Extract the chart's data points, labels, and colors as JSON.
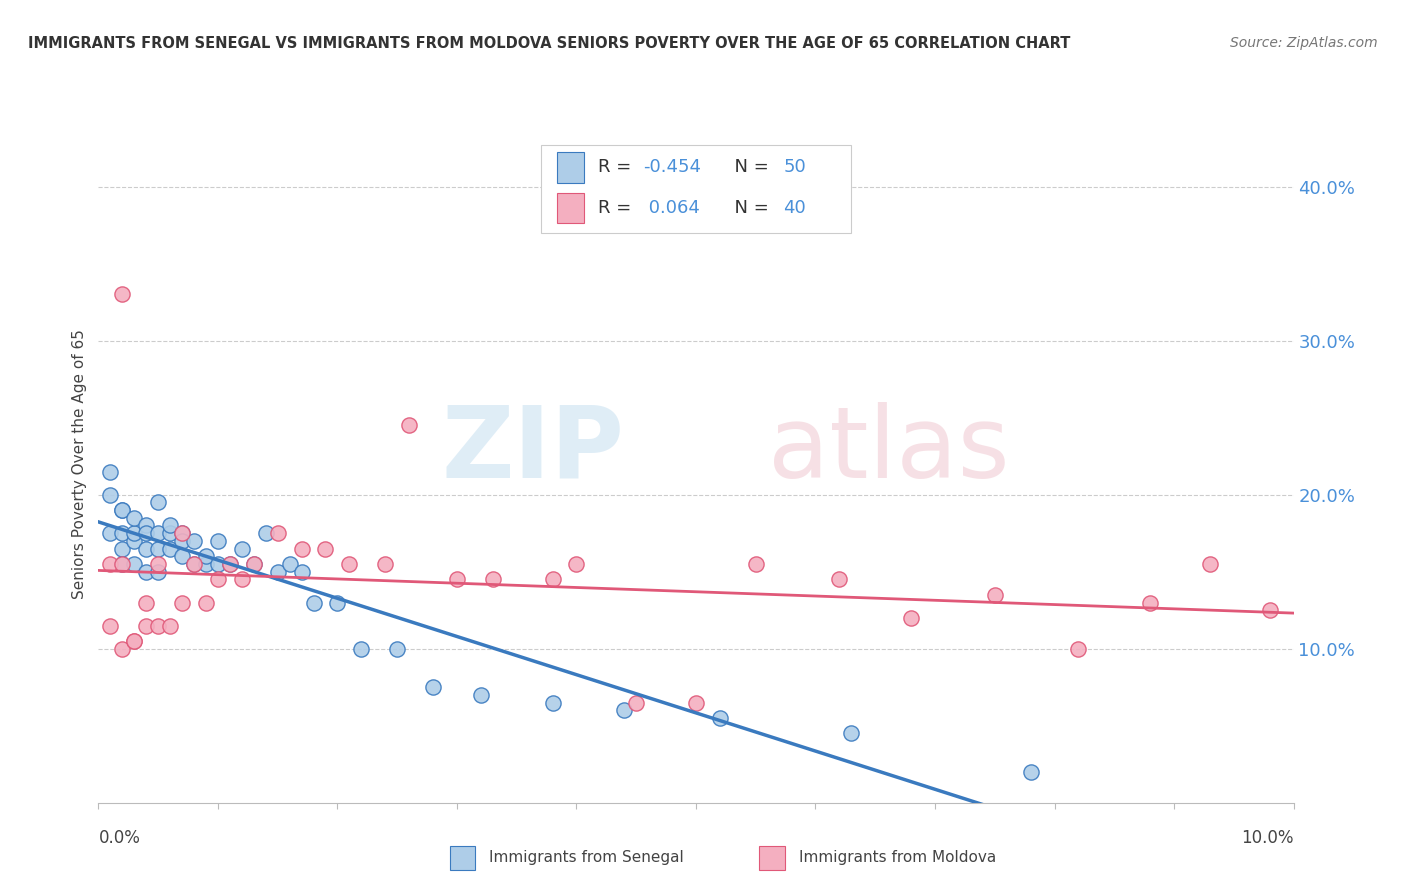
{
  "title": "IMMIGRANTS FROM SENEGAL VS IMMIGRANTS FROM MOLDOVA SENIORS POVERTY OVER THE AGE OF 65 CORRELATION CHART",
  "source": "Source: ZipAtlas.com",
  "ylabel": "Seniors Poverty Over the Age of 65",
  "R1": -0.454,
  "N1": 50,
  "R2": 0.064,
  "N2": 40,
  "color_senegal": "#aecde8",
  "color_moldova": "#f4afc0",
  "color_senegal_line": "#3a7abf",
  "color_moldova_line": "#e05878",
  "color_ytick": "#4a90d9",
  "xlim": [
    0.0,
    0.1
  ],
  "ylim": [
    0.0,
    0.44
  ],
  "yticks": [
    0.1,
    0.2,
    0.3,
    0.4
  ],
  "ytick_labels": [
    "10.0%",
    "20.0%",
    "30.0%",
    "40.0%"
  ],
  "senegal_x": [
    0.001,
    0.001,
    0.001,
    0.002,
    0.002,
    0.002,
    0.002,
    0.002,
    0.003,
    0.003,
    0.003,
    0.003,
    0.004,
    0.004,
    0.004,
    0.004,
    0.005,
    0.005,
    0.005,
    0.005,
    0.006,
    0.006,
    0.006,
    0.007,
    0.007,
    0.007,
    0.008,
    0.008,
    0.009,
    0.009,
    0.01,
    0.01,
    0.011,
    0.012,
    0.013,
    0.014,
    0.015,
    0.016,
    0.017,
    0.018,
    0.02,
    0.022,
    0.025,
    0.028,
    0.032,
    0.038,
    0.044,
    0.052,
    0.063,
    0.078
  ],
  "senegal_y": [
    0.175,
    0.215,
    0.2,
    0.175,
    0.19,
    0.165,
    0.155,
    0.19,
    0.155,
    0.17,
    0.175,
    0.185,
    0.15,
    0.165,
    0.18,
    0.175,
    0.15,
    0.165,
    0.175,
    0.195,
    0.165,
    0.175,
    0.18,
    0.175,
    0.16,
    0.17,
    0.155,
    0.17,
    0.155,
    0.16,
    0.155,
    0.17,
    0.155,
    0.165,
    0.155,
    0.175,
    0.15,
    0.155,
    0.15,
    0.13,
    0.13,
    0.1,
    0.1,
    0.075,
    0.07,
    0.065,
    0.06,
    0.055,
    0.045,
    0.02
  ],
  "moldova_x": [
    0.001,
    0.001,
    0.002,
    0.002,
    0.002,
    0.003,
    0.003,
    0.004,
    0.004,
    0.005,
    0.005,
    0.006,
    0.007,
    0.007,
    0.008,
    0.009,
    0.01,
    0.011,
    0.012,
    0.013,
    0.015,
    0.017,
    0.019,
    0.021,
    0.024,
    0.026,
    0.03,
    0.033,
    0.038,
    0.04,
    0.045,
    0.05,
    0.055,
    0.062,
    0.068,
    0.075,
    0.082,
    0.088,
    0.093,
    0.098
  ],
  "moldova_y": [
    0.155,
    0.115,
    0.1,
    0.155,
    0.33,
    0.105,
    0.105,
    0.115,
    0.13,
    0.115,
    0.155,
    0.115,
    0.13,
    0.175,
    0.155,
    0.13,
    0.145,
    0.155,
    0.145,
    0.155,
    0.175,
    0.165,
    0.165,
    0.155,
    0.155,
    0.245,
    0.145,
    0.145,
    0.145,
    0.155,
    0.065,
    0.065,
    0.155,
    0.145,
    0.12,
    0.135,
    0.1,
    0.13,
    0.155,
    0.125
  ]
}
